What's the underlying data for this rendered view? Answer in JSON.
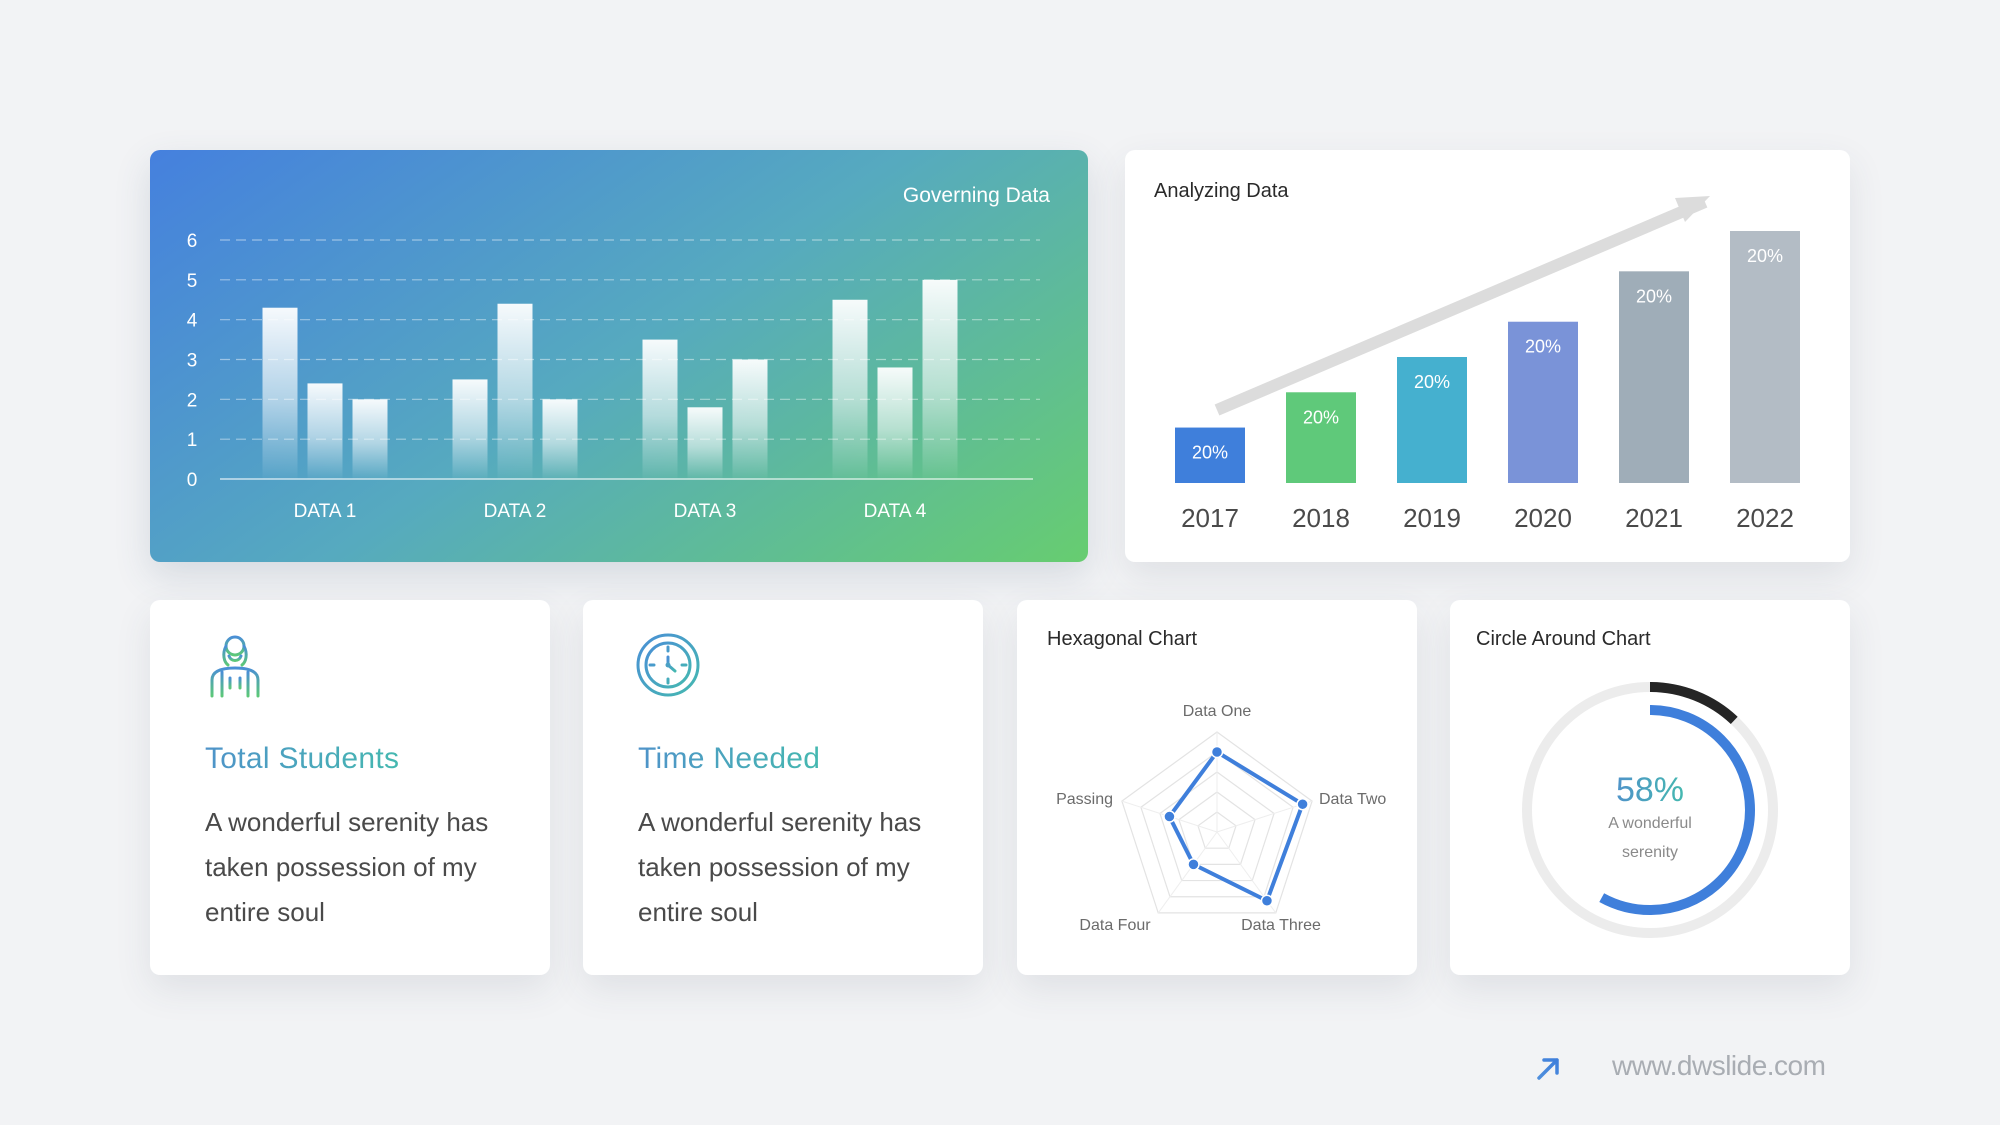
{
  "chart_data": [
    {
      "type": "bar",
      "title": "Governing Data",
      "categories": [
        "DATA 1",
        "DATA 2",
        "DATA 3",
        "DATA 4"
      ],
      "series": [
        {
          "values": [
            4.3,
            2.5,
            3.5,
            4.5
          ]
        },
        {
          "values": [
            2.4,
            4.4,
            1.8,
            2.8
          ]
        },
        {
          "values": [
            2.0,
            2.0,
            3.0,
            5.0
          ]
        }
      ],
      "ylim": [
        0,
        6
      ],
      "yticks": [
        "0",
        "1",
        "2",
        "3",
        "4",
        "5",
        "6"
      ],
      "grid": true
    },
    {
      "type": "bar",
      "title": "Analyzing Data",
      "categories": [
        "2017",
        "2018",
        "2019",
        "2020",
        "2021",
        "2022"
      ],
      "values": [
        20,
        20,
        20,
        20,
        20,
        20
      ],
      "data_labels": [
        "20%",
        "20%",
        "20%",
        "20%",
        "20%",
        "20%"
      ],
      "relative_heights": [
        0.22,
        0.36,
        0.5,
        0.64,
        0.84,
        1.0
      ],
      "colors": [
        "#3f7fdb",
        "#5fc97a",
        "#45b0cf",
        "#7a93d8",
        "#9fadb8",
        "#b3bcc5"
      ],
      "trend_arrow": true
    },
    {
      "type": "radar",
      "title": "Hexagonal Chart",
      "axes": [
        "Data One",
        "Data Two",
        "Data Three",
        "Data Four",
        "Passing"
      ],
      "values": [
        0.8,
        0.9,
        0.85,
        0.4,
        0.5
      ],
      "levels": 5,
      "color": "#3f7fdb"
    },
    {
      "type": "donut",
      "title": "Circle Around Chart",
      "value": 58,
      "label": "58%",
      "sublabel": [
        "A wonderful",
        "serenity"
      ],
      "progress_color": "#3f7fdb",
      "accent_color": "#252525",
      "accent_fraction": 0.12,
      "track_color": "#ececec"
    }
  ],
  "info_cards": [
    {
      "icon": "student-icon",
      "title": "Total Students",
      "text": "A wonderful serenity has taken possession of my entire soul"
    },
    {
      "icon": "clock-icon",
      "title": "Time Needed",
      "text": "A wonderful serenity has taken possession of my entire soul"
    }
  ],
  "colors": {
    "background": "#f2f3f5",
    "title_gradient_start": "#4f93c9",
    "title_gradient_end": "#45b8b0"
  },
  "footer": {
    "link": "www.dwslide.com",
    "icon": "arrow-up-right-icon"
  }
}
